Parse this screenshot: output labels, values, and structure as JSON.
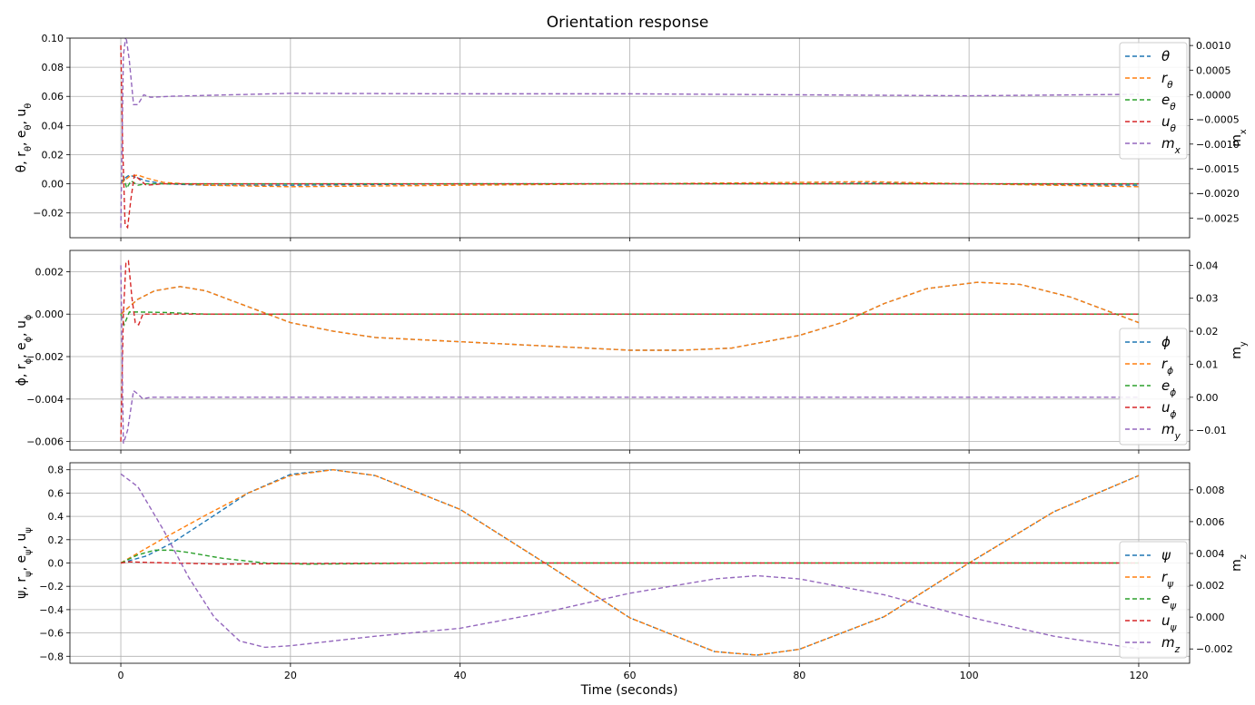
{
  "figure": {
    "title": "Orientation response",
    "xlabel": "Time (seconds)"
  },
  "chart_data": [
    {
      "type": "line",
      "ylabel": "θ, r_θ, e_θ, u_θ",
      "ylabel2": "m_x",
      "xlim": [
        -6,
        126
      ],
      "ylim": [
        -0.037,
        0.1
      ],
      "y2lim": [
        -0.0029,
        0.00115
      ],
      "xticks": [
        0,
        20,
        40,
        60,
        80,
        100,
        120
      ],
      "xtick_labels": [
        "0",
        "20",
        "40",
        "60",
        "80",
        "100",
        "120"
      ],
      "yticks": [
        -0.02,
        0.0,
        0.02,
        0.04,
        0.06,
        0.08,
        0.1
      ],
      "ytick_labels": [
        "−0.02",
        "0.00",
        "0.02",
        "0.04",
        "0.06",
        "0.08",
        "0.10"
      ],
      "y2ticks": [
        -0.0025,
        -0.002,
        -0.0015,
        -0.001,
        -0.0005,
        0.0,
        0.0005,
        0.001
      ],
      "y2tick_labels": [
        "−0.0025",
        "−0.0020",
        "−0.0015",
        "−0.0010",
        "−0.0005",
        "0.0000",
        "0.0005",
        "0.0010"
      ],
      "grid": true,
      "legend_position": "upper-right",
      "series": [
        {
          "name": "θ",
          "label_main": "θ",
          "label_sub": "",
          "color": "#1f77b4",
          "axis": "left",
          "points": [
            [
              0,
              0
            ],
            [
              0.5,
              0.004
            ],
            [
              1,
              0.006
            ],
            [
              2,
              0.004
            ],
            [
              3,
              0.002
            ],
            [
              5,
              0.0
            ],
            [
              10,
              -0.001
            ],
            [
              20,
              -0.001
            ],
            [
              40,
              0.0
            ],
            [
              60,
              0.0
            ],
            [
              80,
              0.0
            ],
            [
              88,
              0.0005
            ],
            [
              100,
              0.0
            ],
            [
              120,
              -0.001
            ]
          ]
        },
        {
          "name": "r_θ",
          "label_main": "r",
          "label_sub": "θ",
          "color": "#ff7f0e",
          "axis": "left",
          "points": [
            [
              0,
              0
            ],
            [
              1,
              0.005
            ],
            [
              2,
              0.006
            ],
            [
              3,
              0.004
            ],
            [
              5,
              0.001
            ],
            [
              10,
              -0.001
            ],
            [
              20,
              -0.002
            ],
            [
              40,
              -0.001
            ],
            [
              60,
              0.0
            ],
            [
              80,
              0.001
            ],
            [
              88,
              0.0015
            ],
            [
              100,
              0.0
            ],
            [
              120,
              -0.002
            ]
          ]
        },
        {
          "name": "e_θ",
          "label_main": "e",
          "label_sub": "θ",
          "color": "#2ca02c",
          "axis": "left",
          "points": [
            [
              0,
              0
            ],
            [
              0.3,
              0.005
            ],
            [
              0.7,
              -0.003
            ],
            [
              1.2,
              0.002
            ],
            [
              2,
              -0.001
            ],
            [
              3,
              0.0
            ],
            [
              120,
              0.0
            ]
          ]
        },
        {
          "name": "u_θ",
          "label_main": "u",
          "label_sub": "θ",
          "color": "#d62728",
          "axis": "left",
          "points": [
            [
              0,
              0.095
            ],
            [
              0.2,
              0.03
            ],
            [
              0.5,
              -0.028
            ],
            [
              0.8,
              -0.03
            ],
            [
              1.2,
              -0.01
            ],
            [
              1.6,
              0.006
            ],
            [
              2.2,
              0.003
            ],
            [
              3,
              -0.001
            ],
            [
              5,
              0.0
            ],
            [
              120,
              0.0
            ]
          ]
        },
        {
          "name": "m_x",
          "label_main": "m",
          "label_sub": "x",
          "color": "#9467bd",
          "axis": "right",
          "points": [
            [
              0,
              -0.0027
            ],
            [
              0.3,
              0.0008
            ],
            [
              0.6,
              0.0012
            ],
            [
              1,
              0.0007
            ],
            [
              1.5,
              -0.0002
            ],
            [
              2,
              -0.0002
            ],
            [
              2.7,
              0.0
            ],
            [
              3.5,
              -5e-05
            ],
            [
              6,
              -3e-05
            ],
            [
              20,
              3e-05
            ],
            [
              40,
              2e-05
            ],
            [
              60,
              2e-05
            ],
            [
              80,
              0.0
            ],
            [
              100,
              -2e-05
            ],
            [
              120,
              1e-05
            ]
          ]
        }
      ]
    },
    {
      "type": "line",
      "ylabel": "ϕ, r_ϕ, e_ϕ, u_ϕ",
      "ylabel2": "m_y",
      "xlim": [
        -6,
        126
      ],
      "ylim": [
        -0.0064,
        0.003
      ],
      "y2lim": [
        -0.016,
        0.0445
      ],
      "xticks": [
        0,
        20,
        40,
        60,
        80,
        100,
        120
      ],
      "xtick_labels": [
        "0",
        "20",
        "40",
        "60",
        "80",
        "100",
        "120"
      ],
      "yticks": [
        -0.006,
        -0.004,
        -0.002,
        0.0,
        0.002
      ],
      "ytick_labels": [
        "−0.006",
        "−0.004",
        "−0.002",
        "0.000",
        "0.002"
      ],
      "y2ticks": [
        -0.01,
        0.0,
        0.01,
        0.02,
        0.03,
        0.04
      ],
      "y2tick_labels": [
        "−0.01",
        "0.00",
        "0.01",
        "0.02",
        "0.03",
        "0.04"
      ],
      "grid": true,
      "legend_position": "lower-right",
      "series": [
        {
          "name": "ϕ",
          "label_main": "ϕ",
          "label_sub": "",
          "color": "#1f77b4",
          "axis": "left",
          "points": [
            [
              0,
              0
            ],
            [
              2,
              0.0007
            ],
            [
              4,
              0.0011
            ],
            [
              7,
              0.0013
            ],
            [
              10,
              0.0011
            ],
            [
              14,
              0.0005
            ],
            [
              20,
              -0.0004
            ],
            [
              25,
              -0.0008
            ],
            [
              30,
              -0.0011
            ],
            [
              40,
              -0.0013
            ],
            [
              50,
              -0.0015
            ],
            [
              60,
              -0.0017
            ],
            [
              66,
              -0.0017
            ],
            [
              72,
              -0.0016
            ],
            [
              80,
              -0.001
            ],
            [
              85,
              -0.0004
            ],
            [
              90,
              0.0005
            ],
            [
              95,
              0.0012
            ],
            [
              101,
              0.0015
            ],
            [
              106,
              0.0014
            ],
            [
              112,
              0.0008
            ],
            [
              120,
              -0.0004
            ]
          ]
        },
        {
          "name": "r_ϕ",
          "label_main": "r",
          "label_sub": "ϕ",
          "color": "#ff7f0e",
          "axis": "left",
          "points": [
            [
              0,
              0
            ],
            [
              2,
              0.0007
            ],
            [
              4,
              0.0011
            ],
            [
              7,
              0.0013
            ],
            [
              10,
              0.0011
            ],
            [
              14,
              0.0005
            ],
            [
              20,
              -0.0004
            ],
            [
              25,
              -0.0008
            ],
            [
              30,
              -0.0011
            ],
            [
              40,
              -0.0013
            ],
            [
              50,
              -0.0015
            ],
            [
              60,
              -0.0017
            ],
            [
              66,
              -0.0017
            ],
            [
              72,
              -0.0016
            ],
            [
              80,
              -0.001
            ],
            [
              85,
              -0.0004
            ],
            [
              90,
              0.0005
            ],
            [
              95,
              0.0012
            ],
            [
              101,
              0.0015
            ],
            [
              106,
              0.0014
            ],
            [
              112,
              0.0008
            ],
            [
              120,
              -0.0004
            ]
          ]
        },
        {
          "name": "e_ϕ",
          "label_main": "e",
          "label_sub": "ϕ",
          "color": "#2ca02c",
          "axis": "left",
          "points": [
            [
              0,
              0
            ],
            [
              0.4,
              -0.0005
            ],
            [
              1,
              0.0001
            ],
            [
              2,
              0.0001
            ],
            [
              5,
              8e-05
            ],
            [
              10,
              0.0
            ],
            [
              120,
              0.0
            ]
          ]
        },
        {
          "name": "u_ϕ",
          "label_main": "u",
          "label_sub": "ϕ",
          "color": "#d62728",
          "axis": "left",
          "points": [
            [
              0,
              -0.006
            ],
            [
              0.3,
              0.0
            ],
            [
              0.6,
              0.0024
            ],
            [
              0.9,
              0.0025
            ],
            [
              1.3,
              0.0008
            ],
            [
              1.7,
              -0.0004
            ],
            [
              2.1,
              -0.0005
            ],
            [
              2.6,
              0.0
            ],
            [
              3.5,
              0.0
            ],
            [
              5,
              0.0
            ],
            [
              120,
              0.0
            ]
          ]
        },
        {
          "name": "m_y",
          "label_main": "m",
          "label_sub": "y",
          "color": "#9467bd",
          "axis": "right",
          "points": [
            [
              0,
              0.04
            ],
            [
              0.3,
              -0.014
            ],
            [
              0.8,
              -0.01
            ],
            [
              1.5,
              0.002
            ],
            [
              2,
              0.001
            ],
            [
              2.6,
              -0.0005
            ],
            [
              3.5,
              0.0
            ],
            [
              120,
              0.0
            ]
          ]
        }
      ]
    },
    {
      "type": "line",
      "ylabel": "ψ, r_ψ, e_ψ, u_ψ",
      "ylabel2": "m_z",
      "xlim": [
        -6,
        126
      ],
      "ylim": [
        -0.86,
        0.86
      ],
      "y2lim": [
        -0.0029,
        0.0097
      ],
      "xticks": [
        0,
        20,
        40,
        60,
        80,
        100,
        120
      ],
      "xtick_labels": [
        "0",
        "20",
        "40",
        "60",
        "80",
        "100",
        "120"
      ],
      "yticks": [
        -0.8,
        -0.6,
        -0.4,
        -0.2,
        0.0,
        0.2,
        0.4,
        0.6,
        0.8
      ],
      "ytick_labels": [
        "−0.8",
        "−0.6",
        "−0.4",
        "−0.2",
        "0.0",
        "0.2",
        "0.4",
        "0.6",
        "0.8"
      ],
      "y2ticks": [
        -0.002,
        0.0,
        0.002,
        0.004,
        0.006,
        0.008
      ],
      "y2tick_labels": [
        "−0.002",
        "0.000",
        "0.002",
        "0.004",
        "0.006",
        "0.008"
      ],
      "grid": true,
      "legend_position": "lower-right",
      "series": [
        {
          "name": "ψ",
          "label_main": "ψ",
          "label_sub": "",
          "color": "#1f77b4",
          "axis": "left",
          "points": [
            [
              0,
              0
            ],
            [
              3,
              0.06
            ],
            [
              6,
              0.17
            ],
            [
              10,
              0.36
            ],
            [
              15,
              0.6
            ],
            [
              20,
              0.76
            ],
            [
              25,
              0.8
            ],
            [
              30,
              0.75
            ],
            [
              40,
              0.46
            ],
            [
              50,
              0.0
            ],
            [
              60,
              -0.47
            ],
            [
              70,
              -0.76
            ],
            [
              75,
              -0.79
            ],
            [
              80,
              -0.74
            ],
            [
              90,
              -0.46
            ],
            [
              100,
              0.0
            ],
            [
              110,
              0.44
            ],
            [
              120,
              0.75
            ]
          ]
        },
        {
          "name": "r_ψ",
          "label_main": "r",
          "label_sub": "ψ",
          "color": "#ff7f0e",
          "axis": "left",
          "points": [
            [
              0,
              0
            ],
            [
              5,
              0.21
            ],
            [
              10,
              0.41
            ],
            [
              15,
              0.6
            ],
            [
              20,
              0.75
            ],
            [
              25,
              0.8
            ],
            [
              30,
              0.75
            ],
            [
              40,
              0.46
            ],
            [
              50,
              0.0
            ],
            [
              60,
              -0.47
            ],
            [
              70,
              -0.76
            ],
            [
              75,
              -0.79
            ],
            [
              80,
              -0.74
            ],
            [
              90,
              -0.46
            ],
            [
              100,
              0.0
            ],
            [
              110,
              0.44
            ],
            [
              120,
              0.75
            ]
          ]
        },
        {
          "name": "e_ψ",
          "label_main": "e",
          "label_sub": "ψ",
          "color": "#2ca02c",
          "axis": "left",
          "points": [
            [
              0,
              0
            ],
            [
              2,
              0.07
            ],
            [
              4,
              0.11
            ],
            [
              6,
              0.11
            ],
            [
              8,
              0.09
            ],
            [
              12,
              0.04
            ],
            [
              17,
              0.0
            ],
            [
              22,
              -0.01
            ],
            [
              30,
              -0.005
            ],
            [
              40,
              0.0
            ],
            [
              120,
              0.0
            ]
          ]
        },
        {
          "name": "u_ψ",
          "label_main": "u",
          "label_sub": "ψ",
          "color": "#d62728",
          "axis": "left",
          "points": [
            [
              0,
              0.0
            ],
            [
              1,
              0.01
            ],
            [
              3,
              0.005
            ],
            [
              6,
              0.0
            ],
            [
              12,
              -0.01
            ],
            [
              20,
              -0.005
            ],
            [
              40,
              0.0
            ],
            [
              120,
              0.0
            ]
          ]
        },
        {
          "name": "m_z",
          "label_main": "m",
          "label_sub": "z",
          "color": "#9467bd",
          "axis": "right",
          "points": [
            [
              0,
              0.009
            ],
            [
              2,
              0.0082
            ],
            [
              5,
              0.0055
            ],
            [
              8,
              0.0025
            ],
            [
              11,
              0.0
            ],
            [
              14,
              -0.0015
            ],
            [
              17,
              -0.0019
            ],
            [
              20,
              -0.0018
            ],
            [
              30,
              -0.0012
            ],
            [
              40,
              -0.0007
            ],
            [
              50,
              0.0003
            ],
            [
              60,
              0.0015
            ],
            [
              70,
              0.0024
            ],
            [
              75,
              0.0026
            ],
            [
              80,
              0.0024
            ],
            [
              90,
              0.0014
            ],
            [
              100,
              0.0
            ],
            [
              110,
              -0.0012
            ],
            [
              120,
              -0.002
            ]
          ]
        }
      ]
    }
  ]
}
